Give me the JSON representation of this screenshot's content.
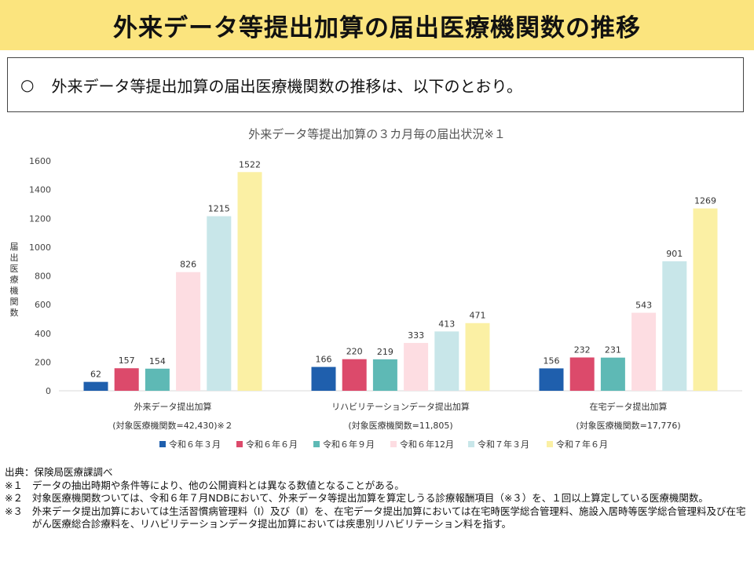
{
  "header": {
    "title": "外来データ等提出加算の届出医療機関数の推移"
  },
  "summary": {
    "bullet": "○",
    "text": "外来データ等提出加算の届出医療機関数の推移は、以下のとおり。"
  },
  "chart_data": {
    "type": "bar",
    "title": "外来データ等提出加算の３カ月毎の届出状況※１",
    "ylabel": "届出医療機関数",
    "ylim": [
      0,
      1600
    ],
    "yticks": [
      0,
      200,
      400,
      600,
      800,
      1000,
      1200,
      1400,
      1600
    ],
    "grid": false,
    "legend_position": "bottom",
    "categories": [
      {
        "name": "外来データ提出加算",
        "sub": "(対象医療機関数=42,430)※２"
      },
      {
        "name": "リハビリテーションデータ提出加算",
        "sub": "(対象医療機関数=11,805)"
      },
      {
        "name": "在宅データ提出加算",
        "sub": "(対象医療機関数=17,776)"
      }
    ],
    "series": [
      {
        "name": "令和６年３月",
        "color": "#1f5fad",
        "values": [
          62,
          166,
          156
        ]
      },
      {
        "name": "令和６年６月",
        "color": "#dc4a6b",
        "values": [
          157,
          220,
          232
        ]
      },
      {
        "name": "令和６年９月",
        "color": "#5eb9b5",
        "values": [
          154,
          219,
          231
        ]
      },
      {
        "name": "令和６年12月",
        "color": "#fddde2",
        "values": [
          826,
          333,
          543
        ]
      },
      {
        "name": "令和７年３月",
        "color": "#c8e6e9",
        "values": [
          1215,
          413,
          901
        ]
      },
      {
        "name": "令和７年６月",
        "color": "#fbf0a4",
        "values": [
          1522,
          471,
          1269
        ]
      }
    ]
  },
  "notes": {
    "source": "出典：保険局医療課調べ",
    "items": [
      {
        "mark": "※１",
        "text": "データの抽出時期や条件等により、他の公開資料とは異なる数値となることがある。"
      },
      {
        "mark": "※２",
        "text": "対象医療機関数ついては、令和６年７月NDBにおいて、外来データ等提出加算を算定しうる診療報酬項目（※３）を、１回以上算定している医療機関数。"
      },
      {
        "mark": "※３",
        "text": "外来データ提出加算においては生活習慣病管理料（Ⅰ）及び（Ⅱ）を、在宅データ提出加算においては在宅時医学総合管理料、施設入居時等医学総合管理料及び在宅がん医療総合診療料を、リハビリテーションデータ提出加算においては疾患別リハビリテーション料を指す。"
      }
    ]
  }
}
